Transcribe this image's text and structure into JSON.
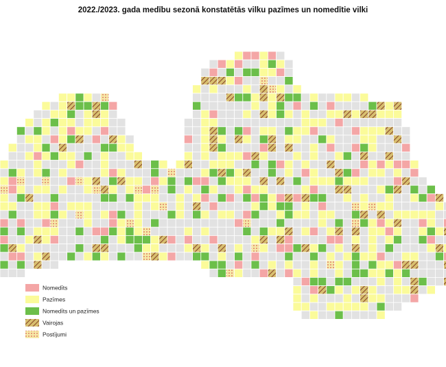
{
  "title": "2022./2023. gada medību sezonā konstatētās vilku pazīmes un nomedītie vilki",
  "legend": [
    {
      "label": "Nomedīts"
    },
    {
      "label": "Pazīmes"
    },
    {
      "label": "Nomedīts un pazīmes"
    },
    {
      "label": "Vairojas"
    },
    {
      "label": "Postījumi"
    }
  ]
}
